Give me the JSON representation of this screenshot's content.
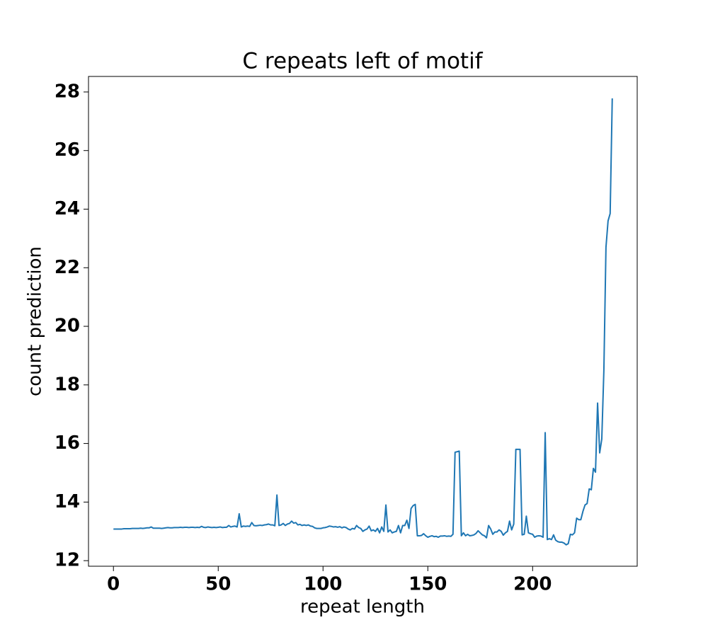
{
  "chart_data": {
    "type": "line",
    "title": "C repeats left of motif",
    "x_label": "repeat length",
    "y_label": "count prediction",
    "x": [
      0,
      1,
      2,
      3,
      4,
      5,
      6,
      7,
      8,
      9,
      10,
      11,
      12,
      13,
      14,
      15,
      16,
      17,
      18,
      19,
      20,
      21,
      22,
      23,
      24,
      25,
      26,
      27,
      28,
      29,
      30,
      31,
      32,
      33,
      34,
      35,
      36,
      37,
      38,
      39,
      40,
      41,
      42,
      43,
      44,
      45,
      46,
      47,
      48,
      49,
      50,
      51,
      52,
      53,
      54,
      55,
      56,
      57,
      58,
      59,
      60,
      61,
      62,
      63,
      64,
      65,
      66,
      67,
      68,
      69,
      70,
      71,
      72,
      73,
      74,
      75,
      76,
      77,
      78,
      79,
      80,
      81,
      82,
      83,
      84,
      85,
      86,
      87,
      88,
      89,
      90,
      91,
      92,
      93,
      94,
      95,
      96,
      97,
      98,
      99,
      100,
      101,
      102,
      103,
      104,
      105,
      106,
      107,
      108,
      109,
      110,
      111,
      112,
      113,
      114,
      115,
      116,
      117,
      118,
      119,
      120,
      121,
      122,
      123,
      124,
      125,
      126,
      127,
      128,
      129,
      130,
      131,
      132,
      133,
      134,
      135,
      136,
      137,
      138,
      139,
      140,
      141,
      142,
      143,
      144,
      145,
      146,
      147,
      148,
      149,
      150,
      151,
      152,
      153,
      154,
      155,
      156,
      157,
      158,
      159,
      160,
      161,
      162,
      163,
      164,
      165,
      166,
      167,
      168,
      169,
      170,
      171,
      172,
      173,
      174,
      175,
      176,
      177,
      178,
      179,
      180,
      181,
      182,
      183,
      184,
      185,
      186,
      187,
      188,
      189,
      190,
      191,
      192,
      193,
      194,
      195,
      196,
      197,
      198,
      199,
      200,
      201,
      202,
      203,
      204,
      205,
      206,
      207,
      208,
      209,
      210,
      211,
      212,
      213,
      214,
      215,
      216,
      217,
      218,
      219,
      220,
      221,
      222,
      223,
      224,
      225,
      226,
      227,
      228,
      229,
      230,
      231,
      232,
      233,
      234,
      235,
      236,
      237,
      238
    ],
    "values": [
      13.08,
      13.08,
      13.08,
      13.08,
      13.08,
      13.09,
      13.09,
      13.09,
      13.09,
      13.1,
      13.1,
      13.1,
      13.1,
      13.11,
      13.1,
      13.11,
      13.12,
      13.12,
      13.15,
      13.11,
      13.11,
      13.11,
      13.11,
      13.1,
      13.11,
      13.12,
      13.13,
      13.12,
      13.12,
      13.13,
      13.13,
      13.13,
      13.14,
      13.13,
      13.14,
      13.14,
      13.13,
      13.14,
      13.14,
      13.13,
      13.14,
      13.13,
      13.17,
      13.14,
      13.13,
      13.15,
      13.14,
      13.13,
      13.14,
      13.13,
      13.14,
      13.15,
      13.13,
      13.14,
      13.14,
      13.2,
      13.15,
      13.17,
      13.18,
      13.15,
      13.6,
      13.15,
      13.18,
      13.17,
      13.18,
      13.17,
      13.3,
      13.2,
      13.19,
      13.2,
      13.21,
      13.2,
      13.22,
      13.23,
      13.25,
      13.22,
      13.22,
      13.19,
      14.24,
      13.2,
      13.22,
      13.27,
      13.2,
      13.25,
      13.27,
      13.35,
      13.28,
      13.3,
      13.22,
      13.24,
      13.2,
      13.22,
      13.2,
      13.22,
      13.18,
      13.17,
      13.12,
      13.1,
      13.1,
      13.1,
      13.12,
      13.13,
      13.15,
      13.18,
      13.17,
      13.15,
      13.16,
      13.14,
      13.16,
      13.12,
      13.15,
      13.13,
      13.08,
      13.05,
      13.1,
      13.08,
      13.2,
      13.13,
      13.1,
      13.0,
      13.05,
      13.08,
      13.18,
      13.02,
      13.05,
      13.0,
      13.1,
      12.95,
      13.15,
      13.0,
      13.9,
      12.98,
      13.05,
      12.95,
      12.98,
      13.0,
      13.2,
      12.95,
      13.2,
      13.2,
      13.38,
      13.1,
      13.78,
      13.88,
      13.92,
      12.85,
      12.85,
      12.86,
      12.92,
      12.85,
      12.8,
      12.83,
      12.85,
      12.82,
      12.83,
      12.8,
      12.84,
      12.84,
      12.85,
      12.83,
      12.84,
      12.83,
      12.9,
      15.7,
      15.72,
      15.74,
      12.85,
      12.95,
      12.85,
      12.9,
      12.85,
      12.86,
      12.88,
      12.93,
      13.02,
      12.95,
      12.88,
      12.85,
      12.78,
      13.2,
      13.08,
      12.9,
      12.98,
      12.98,
      13.05,
      13.0,
      12.87,
      12.95,
      13.0,
      13.35,
      13.05,
      13.25,
      15.8,
      15.8,
      15.8,
      12.88,
      12.9,
      13.52,
      12.95,
      12.92,
      12.9,
      12.8,
      12.84,
      12.85,
      12.84,
      12.8,
      16.37,
      12.72,
      12.75,
      12.72,
      12.88,
      12.7,
      12.65,
      12.63,
      12.63,
      12.6,
      12.54,
      12.58,
      12.9,
      12.88,
      12.95,
      13.45,
      13.4,
      13.4,
      13.68,
      13.9,
      13.95,
      14.45,
      14.42,
      15.15,
      15.02,
      17.38,
      15.68,
      16.15,
      18.5,
      22.7,
      23.6,
      23.85,
      27.78
    ],
    "color": "#1f77b4",
    "xlim": [
      -11.9,
      249.9
    ],
    "xticks": [
      0,
      50,
      100,
      150,
      200
    ],
    "ylim": [
      11.81,
      28.53
    ],
    "yticks": [
      12,
      14,
      16,
      18,
      20,
      22,
      24,
      26,
      28
    ]
  }
}
